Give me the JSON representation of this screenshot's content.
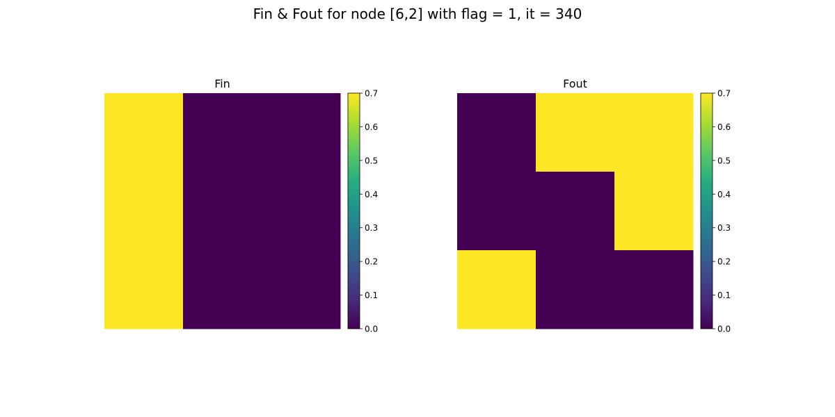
{
  "title": "Fin & Fout for node [6,2] with flag = 1, it = 340",
  "colors": {
    "low": "#440154",
    "high": "#fde725"
  },
  "chart_data": [
    {
      "type": "heatmap",
      "title": "Fin",
      "rows": 3,
      "cols": 3,
      "values": [
        [
          0.7,
          0.0,
          0.0
        ],
        [
          0.7,
          0.0,
          0.0
        ],
        [
          0.7,
          0.0,
          0.0
        ]
      ],
      "colorbar": {
        "range": [
          0.0,
          0.7
        ],
        "ticks": [
          "0.0",
          "0.1",
          "0.2",
          "0.3",
          "0.4",
          "0.5",
          "0.6",
          "0.7"
        ]
      },
      "axes": "off"
    },
    {
      "type": "heatmap",
      "title": "Fout",
      "rows": 3,
      "cols": 3,
      "values": [
        [
          0.0,
          0.7,
          0.7
        ],
        [
          0.0,
          0.0,
          0.7
        ],
        [
          0.7,
          0.0,
          0.0
        ]
      ],
      "colorbar": {
        "range": [
          0.0,
          0.7
        ],
        "ticks": [
          "0.0",
          "0.1",
          "0.2",
          "0.3",
          "0.4",
          "0.5",
          "0.6",
          "0.7"
        ]
      },
      "axes": "off"
    }
  ]
}
